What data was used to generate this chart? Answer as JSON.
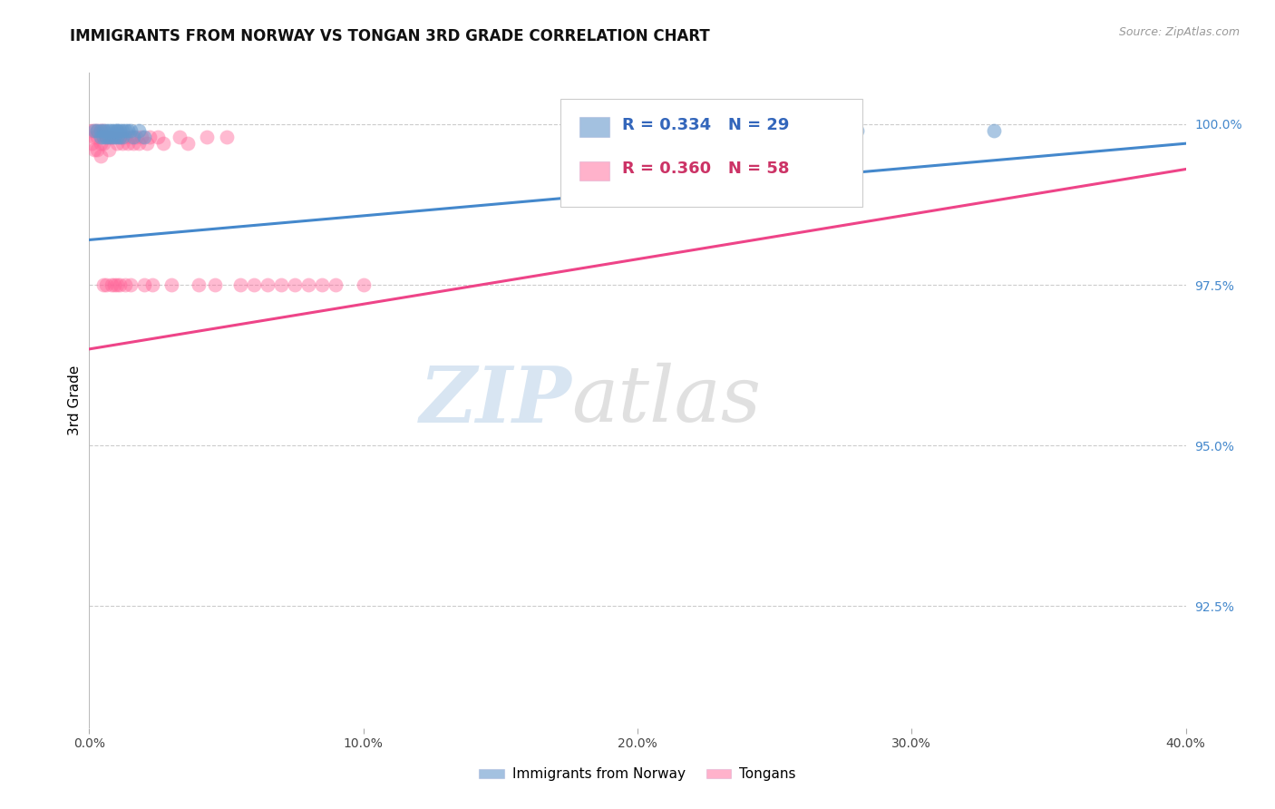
{
  "title": "IMMIGRANTS FROM NORWAY VS TONGAN 3RD GRADE CORRELATION CHART",
  "source": "Source: ZipAtlas.com",
  "ylabel": "3rd Grade",
  "ylabel_right_labels": [
    "100.0%",
    "97.5%",
    "95.0%",
    "92.5%"
  ],
  "ylabel_right_values": [
    1.0,
    0.975,
    0.95,
    0.925
  ],
  "xmin": 0.0,
  "xmax": 0.4,
  "ymin": 0.906,
  "ymax": 1.008,
  "norway_R": 0.334,
  "norway_N": 29,
  "tongan_R": 0.36,
  "tongan_N": 58,
  "norway_color": "#6699CC",
  "tongan_color": "#FF6699",
  "norway_line_color": "#4488CC",
  "tongan_line_color": "#EE4488",
  "legend_label_norway": "Immigrants from Norway",
  "legend_label_tongan": "Tongans",
  "watermark_zip": "ZIP",
  "watermark_atlas": "atlas",
  "norway_x": [
    0.002,
    0.003,
    0.004,
    0.004,
    0.005,
    0.005,
    0.006,
    0.006,
    0.007,
    0.007,
    0.008,
    0.008,
    0.009,
    0.009,
    0.01,
    0.01,
    0.01,
    0.011,
    0.011,
    0.012,
    0.012,
    0.013,
    0.014,
    0.015,
    0.016,
    0.018,
    0.02,
    0.28,
    0.33
  ],
  "norway_y": [
    0.999,
    0.999,
    0.999,
    0.998,
    0.999,
    0.998,
    0.999,
    0.998,
    0.999,
    0.998,
    0.999,
    0.998,
    0.999,
    0.998,
    0.999,
    0.999,
    0.998,
    0.999,
    0.998,
    0.999,
    0.998,
    0.999,
    0.999,
    0.999,
    0.998,
    0.999,
    0.998,
    0.999,
    0.999
  ],
  "tongan_x": [
    0.001,
    0.001,
    0.002,
    0.002,
    0.002,
    0.003,
    0.003,
    0.003,
    0.004,
    0.004,
    0.004,
    0.005,
    0.005,
    0.005,
    0.006,
    0.006,
    0.007,
    0.007,
    0.008,
    0.008,
    0.009,
    0.009,
    0.01,
    0.01,
    0.011,
    0.011,
    0.012,
    0.013,
    0.013,
    0.014,
    0.015,
    0.015,
    0.016,
    0.017,
    0.018,
    0.019,
    0.02,
    0.021,
    0.022,
    0.023,
    0.025,
    0.027,
    0.03,
    0.033,
    0.036,
    0.04,
    0.043,
    0.046,
    0.05,
    0.055,
    0.06,
    0.065,
    0.07,
    0.075,
    0.08,
    0.085,
    0.09,
    0.1
  ],
  "tongan_y": [
    0.999,
    0.997,
    0.999,
    0.998,
    0.996,
    0.999,
    0.998,
    0.996,
    0.999,
    0.997,
    0.995,
    0.999,
    0.997,
    0.975,
    0.998,
    0.975,
    0.998,
    0.996,
    0.998,
    0.975,
    0.998,
    0.975,
    0.997,
    0.975,
    0.998,
    0.975,
    0.997,
    0.998,
    0.975,
    0.997,
    0.998,
    0.975,
    0.997,
    0.998,
    0.997,
    0.998,
    0.975,
    0.997,
    0.998,
    0.975,
    0.998,
    0.997,
    0.975,
    0.998,
    0.997,
    0.975,
    0.998,
    0.975,
    0.998,
    0.975,
    0.975,
    0.975,
    0.975,
    0.975,
    0.975,
    0.975,
    0.975,
    0.975
  ],
  "xtick_positions": [
    0.0,
    0.1,
    0.2,
    0.3,
    0.4
  ],
  "xtick_labels": [
    "0.0%",
    "10.0%",
    "20.0%",
    "30.0%",
    "40.0%"
  ]
}
